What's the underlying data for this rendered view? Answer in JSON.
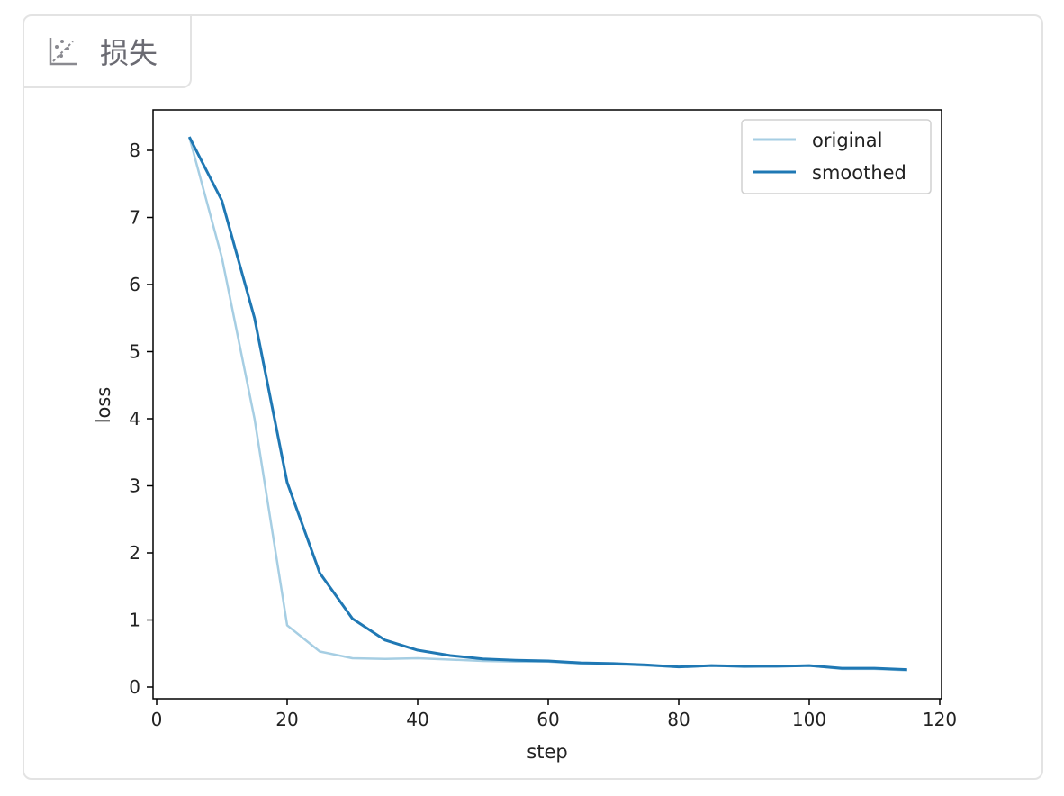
{
  "tab": {
    "label": "损失",
    "icon": "scatter-chart-icon"
  },
  "chart_data": {
    "type": "line",
    "title": "",
    "xlabel": "step",
    "ylabel": "loss",
    "xlim": [
      -0.5,
      120.5
    ],
    "ylim": [
      -0.15,
      8.6
    ],
    "xticks": [
      0,
      20,
      40,
      60,
      80,
      100,
      120
    ],
    "yticks": [
      0,
      1,
      2,
      3,
      4,
      5,
      6,
      7,
      8
    ],
    "grid": false,
    "legend": "top-right",
    "x": [
      5,
      10,
      15,
      20,
      25,
      30,
      35,
      40,
      45,
      50,
      55,
      60,
      65,
      70,
      75,
      80,
      85,
      90,
      95,
      100,
      105,
      110,
      115
    ],
    "series": [
      {
        "name": "original",
        "color": "#a6cee3",
        "values": [
          8.2,
          6.4,
          4.0,
          0.92,
          0.53,
          0.43,
          0.42,
          0.43,
          0.41,
          0.39,
          0.38,
          0.38,
          0.35,
          0.34,
          0.32,
          0.3,
          0.32,
          0.3,
          0.31,
          0.32,
          0.27,
          0.27,
          0.25
        ]
      },
      {
        "name": "smoothed",
        "color": "#1f78b4",
        "values": [
          8.2,
          7.25,
          5.5,
          3.05,
          1.7,
          1.02,
          0.7,
          0.55,
          0.47,
          0.42,
          0.4,
          0.39,
          0.36,
          0.35,
          0.33,
          0.3,
          0.32,
          0.31,
          0.31,
          0.32,
          0.28,
          0.28,
          0.26
        ]
      }
    ]
  }
}
